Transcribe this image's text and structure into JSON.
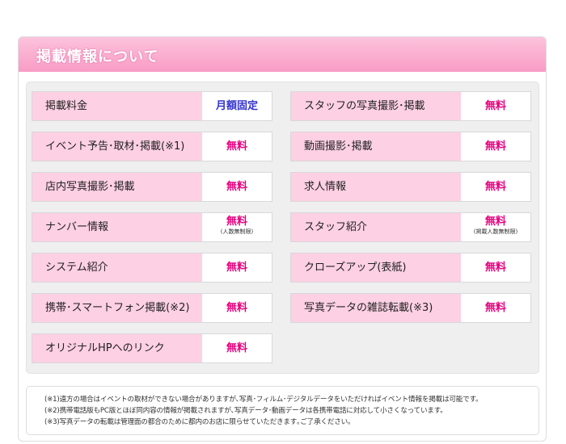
{
  "header": {
    "title": "掲載情報について"
  },
  "columns": [
    [
      {
        "label": "掲載料金",
        "value": "月額固定"
      },
      {
        "label": "イベント予告･取材･掲載(※1)",
        "value": "無料"
      },
      {
        "label": "店内写真撮影･掲載",
        "value": "無料"
      },
      {
        "label": "ナンバー情報",
        "value": "無料",
        "note": "(人数無制限)"
      },
      {
        "label": "システム紹介",
        "value": "無料"
      },
      {
        "label": "携帯･スマートフォン掲載(※2)",
        "value": "無料"
      },
      {
        "label": "オリジナルHPへのリンク",
        "value": "無料"
      }
    ],
    [
      {
        "label": "スタッフの写真撮影･掲載",
        "value": "無料"
      },
      {
        "label": "動画撮影･掲載",
        "value": "無料"
      },
      {
        "label": "求人情報",
        "value": "無料"
      },
      {
        "label": "スタッフ紹介",
        "value": "無料",
        "note": "(掲載人数無制限)"
      },
      {
        "label": "クローズアップ(表紙)",
        "value": "無料"
      },
      {
        "label": "写真データの雑誌転載(※3)",
        "value": "無料"
      }
    ]
  ],
  "notes": [
    "(※1)遠方の場合はイベントの取材ができない場合がありますが､写真･フィルム･デジタルデータをいただければイベント情報を掲載は可能です。",
    "(※2)携帯電話版もPC版とほぼ同内容の情報が掲載されますが､写真データ･動画データは各携帯電話に対応して小さくなっています。",
    "(※3)写真データの転載は管理面の都合のために都内のお店に限らせていただきます｡ご了承ください。"
  ]
}
